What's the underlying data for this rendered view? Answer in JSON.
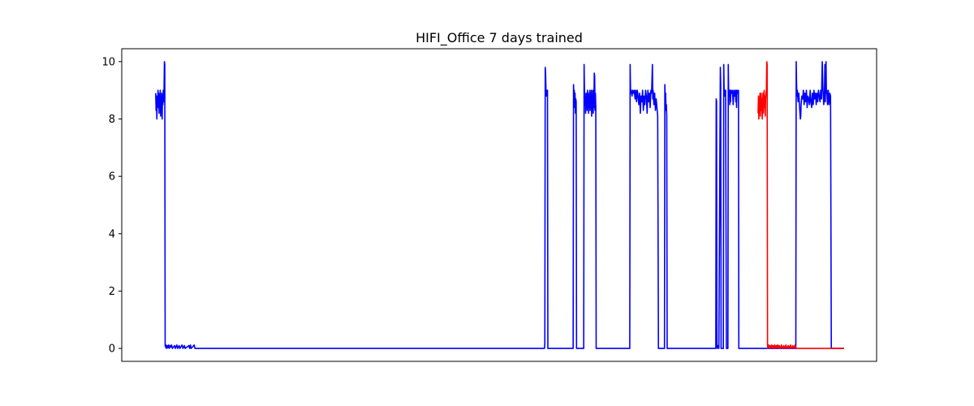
{
  "chart_data": {
    "type": "line",
    "title": "HIFI_Office 7 days trained",
    "xlabel": "",
    "ylabel": "",
    "ylim": [
      -0.45,
      10.45
    ],
    "xlim": [
      0,
      1000
    ],
    "yticks": [
      0,
      2,
      4,
      6,
      8,
      10
    ],
    "ytick_labels": [
      "0",
      "2",
      "4",
      "6",
      "8",
      "10"
    ],
    "xticks_visible": false,
    "grid": false,
    "legend": "none",
    "series": [
      {
        "color": "#0000ff",
        "points": [
          [
            45,
            8.9
          ],
          [
            45.5,
            8.3
          ],
          [
            46,
            8.8
          ],
          [
            46.5,
            8.0
          ],
          [
            47,
            8.7
          ],
          [
            47.5,
            8.5
          ],
          [
            48,
            9.0
          ],
          [
            48.5,
            8.4
          ],
          [
            49,
            8.9
          ],
          [
            49.5,
            8.2
          ],
          [
            50,
            8.8
          ],
          [
            50.5,
            8.6
          ],
          [
            51,
            9.0
          ],
          [
            51.5,
            8.1
          ],
          [
            52,
            8.7
          ],
          [
            52.5,
            8.4
          ],
          [
            53,
            8.9
          ],
          [
            53.5,
            8.0
          ],
          [
            54,
            8.8
          ],
          [
            54.5,
            8.5
          ],
          [
            55,
            9.0
          ],
          [
            55.5,
            8.6
          ],
          [
            56,
            8.9
          ],
          [
            56.5,
            10.0
          ],
          [
            57,
            9.9
          ],
          [
            57.5,
            0.1
          ],
          [
            58,
            0.05
          ],
          [
            58.5,
            0.12
          ],
          [
            59,
            0.0
          ],
          [
            60,
            0.1
          ],
          [
            61,
            0.02
          ],
          [
            62,
            0.12
          ],
          [
            63,
            0.0
          ],
          [
            64,
            0.1
          ],
          [
            65,
            0.05
          ],
          [
            66,
            0.12
          ],
          [
            67,
            0.0
          ],
          [
            70,
            0.1
          ],
          [
            71,
            0.0
          ],
          [
            73,
            0.12
          ],
          [
            74,
            0.0
          ],
          [
            76,
            0.1
          ],
          [
            77,
            0.0
          ],
          [
            80,
            0.12
          ],
          [
            81,
            0.0
          ],
          [
            83,
            0.1
          ],
          [
            84,
            0.0
          ],
          [
            89,
            0.1
          ],
          [
            90,
            0.0
          ],
          [
            91,
            0.12
          ],
          [
            92,
            0.0
          ],
          [
            96,
            0.12
          ],
          [
            97,
            0.0
          ],
          [
            100,
            0.0
          ],
          [
            560,
            0.0
          ],
          [
            560.5,
            0.2
          ],
          [
            561,
            9.8
          ],
          [
            561.5,
            9.6
          ],
          [
            562,
            9.0
          ],
          [
            562.5,
            8.8
          ],
          [
            563,
            9.0
          ],
          [
            563.5,
            8.9
          ],
          [
            564,
            9.0
          ],
          [
            564.5,
            0.0
          ],
          [
            598,
            0.0
          ],
          [
            598.5,
            9.2
          ],
          [
            599,
            8.8
          ],
          [
            599.5,
            9.0
          ],
          [
            600,
            8.4
          ],
          [
            600.5,
            8.9
          ],
          [
            601,
            8.2
          ],
          [
            601.5,
            8.7
          ],
          [
            602,
            8.6
          ],
          [
            602.5,
            0.0
          ],
          [
            612,
            0.0
          ],
          [
            612.5,
            9.9
          ],
          [
            613,
            9.0
          ],
          [
            613.5,
            8.5
          ],
          [
            614,
            8.9
          ],
          [
            614.5,
            8.2
          ],
          [
            615,
            8.8
          ],
          [
            615.5,
            8.4
          ],
          [
            616,
            8.9
          ],
          [
            616.5,
            8.3
          ],
          [
            617,
            9.0
          ],
          [
            617.5,
            8.5
          ],
          [
            618,
            8.9
          ],
          [
            618.5,
            8.2
          ],
          [
            619,
            8.8
          ],
          [
            619.5,
            8.6
          ],
          [
            620,
            9.0
          ],
          [
            620.5,
            8.3
          ],
          [
            621,
            8.9
          ],
          [
            621.5,
            8.5
          ],
          [
            622,
            9.0
          ],
          [
            622.5,
            8.1
          ],
          [
            623,
            8.7
          ],
          [
            623.5,
            8.6
          ],
          [
            624,
            9.0
          ],
          [
            624.5,
            8.2
          ],
          [
            625,
            8.8
          ],
          [
            625.5,
            8.4
          ],
          [
            626,
            9.6
          ],
          [
            626.5,
            9.5
          ],
          [
            627,
            8.3
          ],
          [
            627.5,
            8.9
          ],
          [
            628,
            8.4
          ],
          [
            628.5,
            0.0
          ],
          [
            673,
            0.0
          ],
          [
            673.5,
            9.9
          ],
          [
            674,
            9.0
          ],
          [
            674.5,
            8.9
          ],
          [
            675,
            9.0
          ],
          [
            676,
            8.8
          ],
          [
            677,
            9.0
          ],
          [
            678,
            8.9
          ],
          [
            679,
            9.0
          ],
          [
            680,
            8.7
          ],
          [
            681,
            9.0
          ],
          [
            682,
            8.6
          ],
          [
            683,
            9.0
          ],
          [
            684,
            8.8
          ],
          [
            685,
            8.5
          ],
          [
            686,
            8.9
          ],
          [
            687,
            8.2
          ],
          [
            688,
            8.8
          ],
          [
            689,
            8.6
          ],
          [
            690,
            9.0
          ],
          [
            691,
            8.3
          ],
          [
            692,
            8.8
          ],
          [
            693,
            8.5
          ],
          [
            694,
            9.0
          ],
          [
            695,
            8.8
          ],
          [
            696,
            8.2
          ],
          [
            697,
            9.0
          ],
          [
            698,
            8.6
          ],
          [
            699,
            8.9
          ],
          [
            700,
            8.4
          ],
          [
            701,
            9.0
          ],
          [
            702,
            8.9
          ],
          [
            703,
            9.9
          ],
          [
            703.5,
            8.7
          ],
          [
            704,
            9.0
          ],
          [
            705,
            8.5
          ],
          [
            706,
            8.9
          ],
          [
            707,
            8.3
          ],
          [
            708,
            8.7
          ],
          [
            709,
            8.4
          ],
          [
            710,
            8.1
          ],
          [
            711,
            0.0
          ],
          [
            719,
            0.0
          ],
          [
            719.5,
            9.2
          ],
          [
            720,
            8.6
          ],
          [
            720.5,
            8.9
          ],
          [
            721,
            8.3
          ],
          [
            721.5,
            8.5
          ],
          [
            722,
            8.1
          ],
          [
            722.5,
            0.0
          ],
          [
            787,
            0.0
          ],
          [
            787.5,
            8.7
          ],
          [
            788,
            8.6
          ],
          [
            788.5,
            0.1
          ],
          [
            789,
            0.0
          ],
          [
            790,
            0.1
          ],
          [
            791,
            0.0
          ],
          [
            793,
            9.8
          ],
          [
            793.5,
            9.2
          ],
          [
            794,
            0.0
          ],
          [
            797,
            0.0
          ],
          [
            797.5,
            9.9
          ],
          [
            798,
            9.0
          ],
          [
            798.5,
            8.8
          ],
          [
            799,
            9.0
          ],
          [
            799.5,
            8.9
          ],
          [
            800,
            9.0
          ],
          [
            801,
            0.0
          ],
          [
            803,
            0.0
          ],
          [
            803.5,
            9.9
          ],
          [
            804,
            9.0
          ],
          [
            804.5,
            8.8
          ],
          [
            805,
            9.0
          ],
          [
            805.5,
            8.5
          ],
          [
            806,
            9.0
          ],
          [
            806.5,
            8.6
          ],
          [
            807,
            9.0
          ],
          [
            808,
            8.9
          ],
          [
            809,
            9.0
          ],
          [
            810,
            8.5
          ],
          [
            811,
            9.0
          ],
          [
            812,
            8.8
          ],
          [
            813,
            9.0
          ],
          [
            813.5,
            8.6
          ],
          [
            814,
            9.0
          ],
          [
            814.5,
            8.4
          ],
          [
            815,
            9.0
          ],
          [
            816,
            8.9
          ],
          [
            817,
            9.0
          ],
          [
            817.5,
            0.0
          ],
          [
            818,
            0.0
          ],
          [
            855,
            0.0
          ],
          [
            856,
            0.02
          ],
          [
            857,
            0.0
          ],
          [
            893,
            0.0
          ],
          [
            893.5,
            10.0
          ],
          [
            894,
            9.2
          ],
          [
            894.5,
            8.8
          ],
          [
            895,
            9.0
          ],
          [
            896,
            8.6
          ],
          [
            897,
            8.9
          ],
          [
            898,
            8.4
          ],
          [
            899,
            8.0
          ],
          [
            899.5,
            8.1
          ],
          [
            900,
            8.5
          ],
          [
            901,
            8.8
          ],
          [
            902,
            8.7
          ],
          [
            903,
            9.0
          ],
          [
            904,
            8.5
          ],
          [
            905,
            8.9
          ],
          [
            906,
            8.6
          ],
          [
            907,
            9.0
          ],
          [
            908,
            8.4
          ],
          [
            909,
            8.8
          ],
          [
            910,
            8.7
          ],
          [
            911,
            8.5
          ],
          [
            912,
            9.0
          ],
          [
            913,
            8.6
          ],
          [
            914,
            8.4
          ],
          [
            915,
            8.9
          ],
          [
            916,
            8.5
          ],
          [
            917,
            9.0
          ],
          [
            918,
            8.7
          ],
          [
            919,
            8.9
          ],
          [
            920,
            8.5
          ],
          [
            921,
            8.9
          ],
          [
            922,
            8.6
          ],
          [
            923,
            9.0
          ],
          [
            924,
            8.8
          ],
          [
            925,
            8.6
          ],
          [
            926,
            9.0
          ],
          [
            927,
            8.7
          ],
          [
            928,
            10.0
          ],
          [
            929,
            9.0
          ],
          [
            930,
            8.5
          ],
          [
            931,
            9.0
          ],
          [
            931.5,
            9.9
          ],
          [
            932,
            8.6
          ],
          [
            933,
            10.0
          ],
          [
            933.5,
            8.9
          ],
          [
            934,
            9.0
          ],
          [
            935,
            8.5
          ],
          [
            936,
            9.0
          ],
          [
            937,
            8.5
          ],
          [
            938,
            8.9
          ],
          [
            939,
            8.8
          ],
          [
            940,
            0.0
          ],
          [
            941,
            0.0
          ],
          [
            957,
            0.0
          ]
        ]
      },
      {
        "color": "#ff0000",
        "points": [
          [
            843,
            8.2
          ],
          [
            843.5,
            8.8
          ],
          [
            844,
            8.0
          ],
          [
            844.5,
            8.7
          ],
          [
            845,
            8.4
          ],
          [
            845.5,
            8.9
          ],
          [
            846,
            8.1
          ],
          [
            846.5,
            8.6
          ],
          [
            847,
            8.9
          ],
          [
            847.5,
            8.3
          ],
          [
            848,
            8.7
          ],
          [
            848.5,
            8.0
          ],
          [
            849,
            8.6
          ],
          [
            849.5,
            8.9
          ],
          [
            850,
            8.2
          ],
          [
            850.5,
            8.5
          ],
          [
            851,
            9.0
          ],
          [
            851.5,
            8.4
          ],
          [
            852,
            8.8
          ],
          [
            852.5,
            8.1
          ],
          [
            853,
            8.7
          ],
          [
            853.5,
            8.9
          ],
          [
            854,
            9.0
          ],
          [
            854.5,
            10.0
          ],
          [
            855,
            9.9
          ],
          [
            855.5,
            0.1
          ],
          [
            856,
            0.0
          ],
          [
            857,
            0.12
          ],
          [
            858,
            0.05
          ],
          [
            859,
            0.1
          ],
          [
            860,
            0.0
          ],
          [
            861,
            0.12
          ],
          [
            862,
            0.05
          ],
          [
            863,
            0.1
          ],
          [
            864,
            0.0
          ],
          [
            865,
            0.12
          ],
          [
            866,
            0.0
          ],
          [
            867,
            0.1
          ],
          [
            868,
            0.05
          ],
          [
            869,
            0.12
          ],
          [
            870,
            0.0
          ],
          [
            871,
            0.1
          ],
          [
            872,
            0.0
          ],
          [
            874,
            0.12
          ],
          [
            875,
            0.0
          ],
          [
            877,
            0.1
          ],
          [
            878,
            0.0
          ],
          [
            880,
            0.12
          ],
          [
            881,
            0.0
          ],
          [
            883,
            0.1
          ],
          [
            884,
            0.0
          ],
          [
            886,
            0.12
          ],
          [
            887,
            0.0
          ],
          [
            889,
            0.1
          ],
          [
            890,
            0.0
          ],
          [
            892,
            0.12
          ],
          [
            893,
            0.0
          ],
          [
            957,
            0.0
          ]
        ]
      }
    ]
  }
}
